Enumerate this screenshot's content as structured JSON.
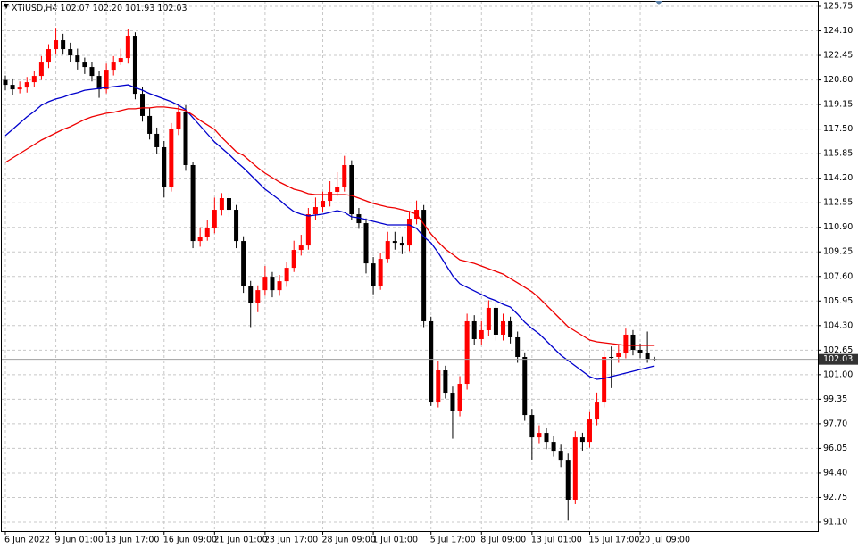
{
  "chart_data": {
    "type": "candlestick",
    "symbol": "XTIUSD,H4",
    "ohlc_labels": [
      "102.07",
      "102.20",
      "101.93",
      "102.03"
    ],
    "categories": [
      "6 Jun 2022",
      null,
      null,
      null,
      null,
      null,
      null,
      "9 Jun 01:00",
      null,
      null,
      null,
      null,
      null,
      null,
      "13 Jun 17:00",
      null,
      null,
      null,
      null,
      null,
      null,
      null,
      "16 Jun 09:00",
      null,
      null,
      null,
      null,
      null,
      null,
      "21 Jun 01:00",
      null,
      null,
      null,
      null,
      null,
      null,
      "23 Jun 17:00",
      null,
      null,
      null,
      null,
      null,
      null,
      null,
      "28 Jun 09:00",
      null,
      null,
      null,
      null,
      null,
      null,
      "1 Jul 01:00",
      null,
      null,
      null,
      null,
      null,
      null,
      null,
      "5 Jul 17:00",
      null,
      null,
      null,
      null,
      null,
      null,
      "8 Jul 09:00",
      null,
      null,
      null,
      null,
      null,
      null,
      "13 Jul 01:00",
      null,
      null,
      null,
      null,
      null,
      null,
      null,
      "15 Jul 17:00",
      null,
      null,
      null,
      null,
      null,
      null,
      "20 Jul 09:00",
      null,
      null
    ],
    "open": [
      120.8,
      120.47,
      120.17,
      120.29,
      120.65,
      121.07,
      121.97,
      122.87,
      123.47,
      122.87,
      122.45,
      121.97,
      121.67,
      121.07,
      120.17,
      121.49,
      121.97,
      122.27,
      123.77,
      119.87,
      118.38,
      117.18,
      116.28,
      113.58,
      117.48,
      118.68,
      115.08,
      109.98,
      110.28,
      110.88,
      112.08,
      112.86,
      112.08,
      109.98,
      106.98,
      105.79,
      106.68,
      107.58,
      106.68,
      107.28,
      108.18,
      109.38,
      109.68,
      111.78,
      112.26,
      112.68,
      113.28,
      113.58,
      115.08,
      111.78,
      111.18,
      108.48,
      106.98,
      108.78,
      109.98,
      109.86,
      109.68,
      111.48,
      112.08,
      104.59,
      99.19,
      101.29,
      99.79,
      98.59,
      100.39,
      104.59,
      103.39,
      103.99,
      105.49,
      103.69,
      104.59,
      103.51,
      102.19,
      98.29,
      96.79,
      97.09,
      96.49,
      95.89,
      95.29,
      92.6,
      96.79,
      96.49,
      97.99,
      99.19,
      102.19,
      102.19,
      102.49,
      103.69,
      102.67,
      102.49,
      102.07
    ],
    "high": [
      121.1,
      120.9,
      120.7,
      121.0,
      121.4,
      122.4,
      123.2,
      124.3,
      123.9,
      123.3,
      122.9,
      122.3,
      122.0,
      121.4,
      121.9,
      122.4,
      122.9,
      124.2,
      124.0,
      120.3,
      118.9,
      117.6,
      116.7,
      117.9,
      119.2,
      119.1,
      115.3,
      110.9,
      111.4,
      112.9,
      113.2,
      113.2,
      112.4,
      110.3,
      107.3,
      107.0,
      108.3,
      107.9,
      107.7,
      108.6,
      110.0,
      110.4,
      112.2,
      112.9,
      113.3,
      114.0,
      114.6,
      115.7,
      115.4,
      112.2,
      111.5,
      108.9,
      109.2,
      110.6,
      110.6,
      110.3,
      112.0,
      112.7,
      112.4,
      104.9,
      101.9,
      101.6,
      100.2,
      100.9,
      105.1,
      105.0,
      104.6,
      106.0,
      105.8,
      105.1,
      104.9,
      103.9,
      102.5,
      98.7,
      97.6,
      97.4,
      96.9,
      96.3,
      95.7,
      97.2,
      97.1,
      98.5,
      99.8,
      102.6,
      102.9,
      103.0,
      104.1,
      104.0,
      103.1,
      103.9,
      102.2
    ],
    "low": [
      120.1,
      119.8,
      119.9,
      119.95,
      120.3,
      120.8,
      121.6,
      122.5,
      122.5,
      122.0,
      121.5,
      121.2,
      120.7,
      119.6,
      119.9,
      121.1,
      121.8,
      121.9,
      119.5,
      118.0,
      116.8,
      115.8,
      112.9,
      113.3,
      117.1,
      114.7,
      109.5,
      109.6,
      110.0,
      110.5,
      111.7,
      111.6,
      109.5,
      106.5,
      104.2,
      105.2,
      106.3,
      106.2,
      106.3,
      106.9,
      107.9,
      109.0,
      109.4,
      111.4,
      111.9,
      112.3,
      113.0,
      113.3,
      111.4,
      110.8,
      107.8,
      106.4,
      106.7,
      108.5,
      109.4,
      109.1,
      109.3,
      111.1,
      104.2,
      98.9,
      98.8,
      99.4,
      96.7,
      98.2,
      100.0,
      103.0,
      103.0,
      103.6,
      103.3,
      103.3,
      103.1,
      101.8,
      97.9,
      95.3,
      96.4,
      96.0,
      95.5,
      94.8,
      91.2,
      92.3,
      95.9,
      96.1,
      97.6,
      98.8,
      100.1,
      101.8,
      102.1,
      102.3,
      102.1,
      101.8,
      101.93
    ],
    "close": [
      120.47,
      120.17,
      120.29,
      120.65,
      121.07,
      121.97,
      122.87,
      123.47,
      122.87,
      122.45,
      121.97,
      121.67,
      121.07,
      120.17,
      121.49,
      121.97,
      122.27,
      123.77,
      119.87,
      118.38,
      117.18,
      116.28,
      113.58,
      117.48,
      118.68,
      115.08,
      109.98,
      110.28,
      110.88,
      112.08,
      112.86,
      112.08,
      109.98,
      106.98,
      105.79,
      106.68,
      107.58,
      106.68,
      107.28,
      108.18,
      109.38,
      109.68,
      111.78,
      112.26,
      112.68,
      113.28,
      113.58,
      115.08,
      111.78,
      111.18,
      108.48,
      106.98,
      108.78,
      109.98,
      109.86,
      109.68,
      111.48,
      112.08,
      104.59,
      99.19,
      101.29,
      99.79,
      98.59,
      100.39,
      104.59,
      103.39,
      103.99,
      105.49,
      103.69,
      104.59,
      103.51,
      102.19,
      98.29,
      96.79,
      97.09,
      96.49,
      95.89,
      95.29,
      92.6,
      96.79,
      96.49,
      97.99,
      99.19,
      102.19,
      102.19,
      102.49,
      103.69,
      102.67,
      102.49,
      102.07,
      102.03
    ],
    "bull_color": "#ff0000",
    "bear_color": "#000000",
    "series": [
      {
        "color": "#0000cc",
        "values": [
          117.06,
          117.48,
          117.9,
          118.32,
          118.68,
          119.1,
          119.34,
          119.52,
          119.64,
          119.82,
          119.94,
          120.11,
          120.17,
          120.23,
          120.29,
          120.35,
          120.41,
          120.47,
          120.29,
          120.11,
          119.88,
          119.7,
          119.52,
          119.34,
          119.1,
          118.8,
          118.26,
          117.72,
          117.18,
          116.64,
          116.22,
          115.8,
          115.32,
          114.9,
          114.42,
          113.94,
          113.46,
          113.1,
          112.74,
          112.32,
          111.96,
          111.78,
          111.66,
          111.72,
          111.78,
          111.9,
          112.02,
          111.9,
          111.6,
          111.54,
          111.42,
          111.3,
          111.18,
          111.06,
          111.06,
          111.06,
          111.06,
          110.82,
          110.28,
          109.86,
          109.2,
          108.42,
          107.65,
          107.11,
          106.87,
          106.63,
          106.39,
          106.15,
          105.97,
          105.73,
          105.55,
          105.07,
          104.53,
          104.11,
          103.75,
          103.27,
          102.79,
          102.31,
          101.95,
          101.59,
          101.23,
          100.87,
          100.69,
          100.75,
          100.87,
          100.99,
          101.11,
          101.23,
          101.35,
          101.47,
          101.59
        ]
      },
      {
        "color": "#ee0000",
        "values": [
          115.26,
          115.56,
          115.86,
          116.16,
          116.46,
          116.76,
          117.0,
          117.24,
          117.48,
          117.66,
          117.9,
          118.14,
          118.32,
          118.44,
          118.56,
          118.62,
          118.74,
          118.86,
          118.86,
          118.92,
          118.92,
          118.98,
          118.98,
          118.92,
          118.86,
          118.74,
          118.44,
          118.08,
          117.78,
          117.48,
          116.94,
          116.46,
          115.98,
          115.74,
          115.32,
          114.9,
          114.54,
          114.24,
          113.94,
          113.7,
          113.46,
          113.34,
          113.16,
          113.1,
          113.1,
          113.1,
          113.1,
          113.1,
          113.04,
          112.86,
          112.68,
          112.5,
          112.38,
          112.26,
          112.2,
          112.08,
          111.96,
          111.78,
          111.12,
          110.46,
          109.92,
          109.44,
          109.08,
          108.72,
          108.6,
          108.48,
          108.3,
          108.12,
          107.94,
          107.76,
          107.46,
          107.17,
          106.87,
          106.57,
          106.15,
          105.67,
          105.19,
          104.71,
          104.23,
          103.93,
          103.63,
          103.33,
          103.21,
          103.15,
          103.09,
          103.03,
          102.97,
          102.97,
          102.97,
          102.97,
          102.97
        ]
      }
    ],
    "ylim": [
      90.5,
      126.05
    ],
    "yticks": [
      125.75,
      {
        "value": 124.1,
        "label": "124.10"
      },
      122.45,
      {
        "value": 120.8,
        "label": "120.80"
      },
      119.15,
      {
        "value": 117.5,
        "label": "117.50"
      },
      115.85,
      {
        "value": 114.2,
        "label": "114.20"
      },
      112.55,
      {
        "value": 110.9,
        "label": "110.90"
      },
      109.25,
      {
        "value": 107.6,
        "label": "107.60"
      },
      105.95,
      {
        "value": 104.3,
        "label": "104.30"
      },
      102.65,
      {
        "value": 101.0,
        "label": "101.00"
      },
      99.35,
      {
        "value": 97.7,
        "label": "97.70"
      },
      96.05,
      {
        "value": 94.4,
        "label": "94.40"
      },
      92.75,
      {
        "value": 91.1,
        "label": "91.10"
      }
    ],
    "grid": true
  }
}
